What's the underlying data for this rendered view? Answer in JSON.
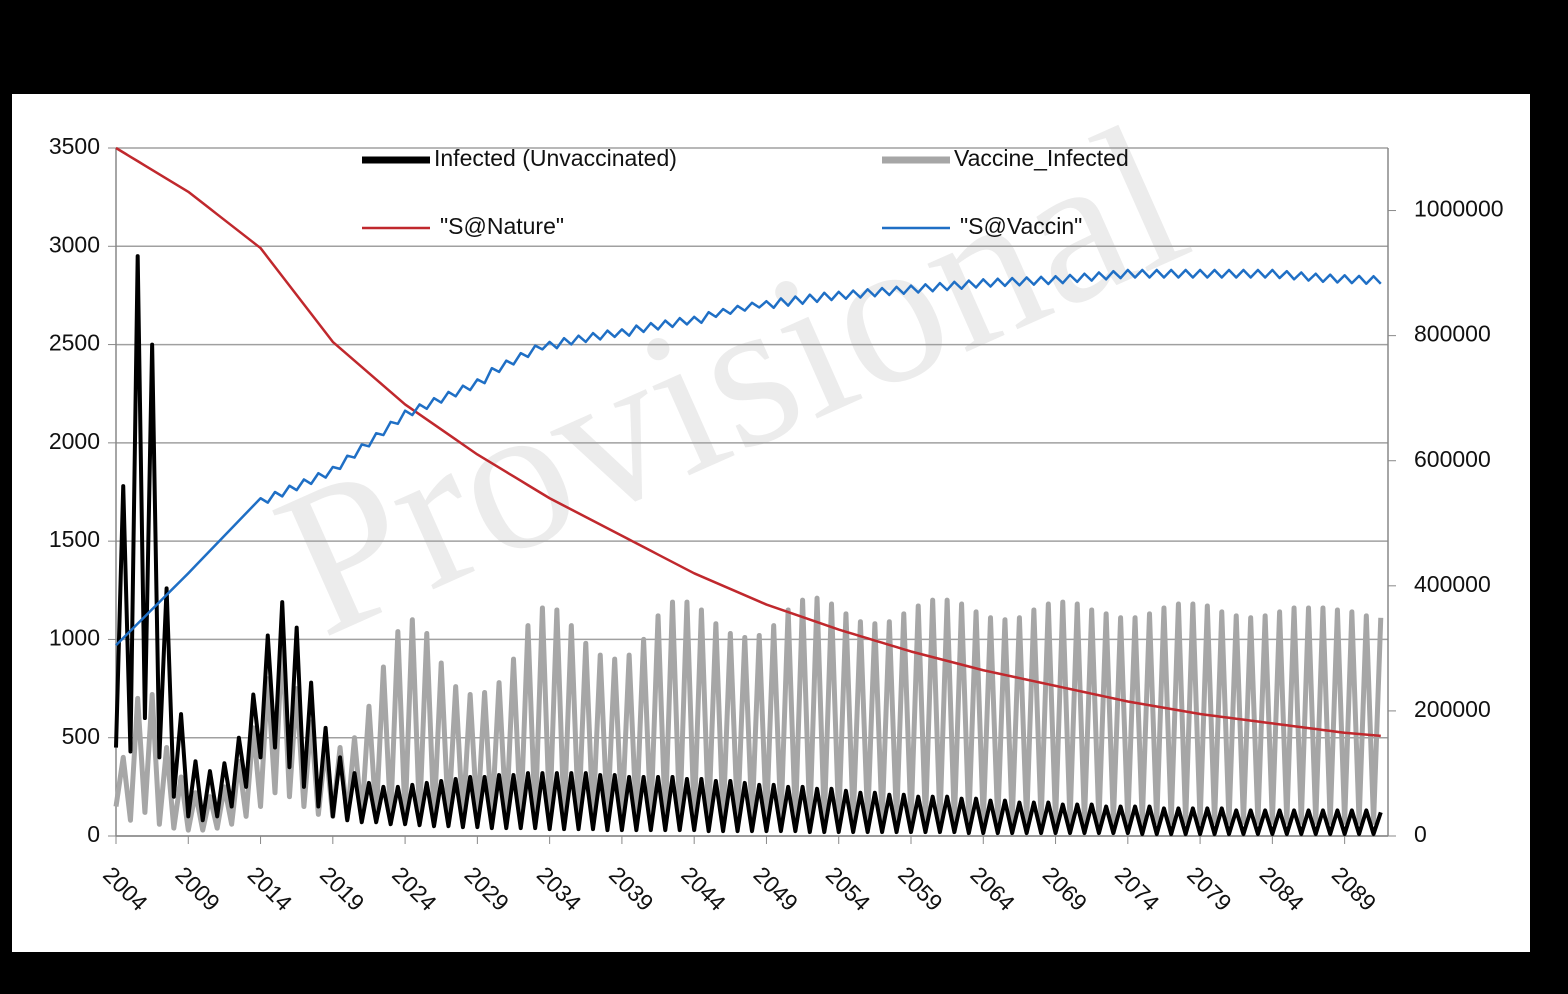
{
  "chart_data": {
    "type": "line",
    "watermark": "Provisional",
    "x": [
      2004,
      2004.5,
      2005,
      2005.5,
      2006,
      2006.5,
      2007,
      2007.5,
      2008,
      2008.5,
      2009,
      2009.5,
      2010,
      2010.5,
      2011,
      2011.5,
      2012,
      2012.5,
      2013,
      2013.5,
      2014,
      2014.5,
      2015,
      2015.5,
      2016,
      2016.5,
      2017,
      2017.5,
      2018,
      2018.5,
      2019,
      2019.5,
      2020,
      2020.5,
      2021,
      2021.5,
      2022,
      2022.5,
      2023,
      2023.5,
      2024,
      2024.5,
      2025,
      2025.5,
      2026,
      2026.5,
      2027,
      2027.5,
      2028,
      2028.5,
      2029,
      2029.5,
      2030,
      2030.5,
      2031,
      2031.5,
      2032,
      2032.5,
      2033,
      2033.5,
      2034,
      2034.5,
      2035,
      2035.5,
      2036,
      2036.5,
      2037,
      2037.5,
      2038,
      2038.5,
      2039,
      2039.5,
      2040,
      2040.5,
      2041,
      2041.5,
      2042,
      2042.5,
      2043,
      2043.5,
      2044,
      2044.5,
      2045,
      2045.5,
      2046,
      2046.5,
      2047,
      2047.5,
      2048,
      2048.5,
      2049,
      2049.5,
      2050,
      2050.5,
      2051,
      2051.5,
      2052,
      2052.5,
      2053,
      2053.5,
      2054,
      2054.5,
      2055,
      2055.5,
      2056,
      2056.5,
      2057,
      2057.5,
      2058,
      2058.5,
      2059,
      2059.5,
      2060,
      2060.5,
      2061,
      2061.5,
      2062,
      2062.5,
      2063,
      2063.5,
      2064,
      2064.5,
      2065,
      2065.5,
      2066,
      2066.5,
      2067,
      2067.5,
      2068,
      2068.5,
      2069,
      2069.5,
      2070,
      2070.5,
      2071,
      2071.5,
      2072,
      2072.5,
      2073,
      2073.5,
      2074,
      2074.5,
      2075,
      2075.5,
      2076,
      2076.5,
      2077,
      2077.5,
      2078,
      2078.5,
      2079,
      2079.5,
      2080,
      2080.5,
      2081,
      2081.5,
      2082,
      2082.5,
      2083,
      2083.5,
      2084,
      2084.5,
      2085,
      2085.5,
      2086,
      2086.5,
      2087,
      2087.5,
      2088,
      2088.5,
      2089,
      2089.5,
      2090,
      2090.5,
      2091,
      2091.5
    ],
    "series": [
      {
        "name": "Infected (Unvaccinated)",
        "color": "#000000",
        "axis": "y",
        "values": [
          450,
          1780,
          430,
          2950,
          600,
          2500,
          400,
          1260,
          200,
          620,
          100,
          380,
          80,
          330,
          100,
          370,
          150,
          500,
          250,
          720,
          400,
          1020,
          450,
          1190,
          350,
          1060,
          250,
          780,
          150,
          550,
          100,
          400,
          80,
          320,
          70,
          270,
          70,
          250,
          60,
          250,
          60,
          260,
          55,
          270,
          50,
          280,
          50,
          290,
          45,
          300,
          45,
          300,
          40,
          310,
          40,
          310,
          40,
          320,
          40,
          320,
          35,
          320,
          35,
          320,
          35,
          320,
          35,
          310,
          30,
          310,
          30,
          300,
          30,
          300,
          30,
          300,
          30,
          300,
          30,
          290,
          30,
          290,
          25,
          280,
          25,
          280,
          25,
          270,
          25,
          260,
          25,
          260,
          25,
          250,
          25,
          250,
          20,
          240,
          20,
          240,
          20,
          230,
          20,
          220,
          20,
          220,
          20,
          210,
          20,
          210,
          20,
          200,
          20,
          200,
          20,
          200,
          20,
          190,
          15,
          190,
          15,
          180,
          15,
          180,
          15,
          170,
          15,
          170,
          15,
          170,
          15,
          160,
          15,
          160,
          15,
          160,
          15,
          150,
          15,
          150,
          15,
          150,
          10,
          150,
          10,
          140,
          10,
          140,
          10,
          140,
          10,
          140,
          10,
          140,
          10,
          130,
          10,
          130,
          10,
          130,
          10,
          130,
          10,
          130,
          10,
          130,
          10,
          130,
          10,
          130,
          10,
          130,
          10,
          130,
          10,
          120
        ]
      },
      {
        "name": "Vaccine_Infected",
        "color": "#a6a6a6",
        "axis": "y",
        "values": [
          150,
          400,
          80,
          700,
          120,
          720,
          60,
          450,
          40,
          300,
          30,
          220,
          30,
          200,
          40,
          250,
          60,
          380,
          100,
          550,
          150,
          800,
          220,
          1000,
          200,
          750,
          150,
          580,
          110,
          460,
          100,
          450,
          90,
          500,
          90,
          660,
          90,
          860,
          90,
          1040,
          90,
          1100,
          90,
          1030,
          85,
          880,
          80,
          760,
          80,
          720,
          80,
          730,
          80,
          780,
          80,
          900,
          80,
          1070,
          80,
          1160,
          80,
          1150,
          80,
          1070,
          80,
          980,
          80,
          920,
          80,
          900,
          80,
          920,
          80,
          1000,
          80,
          1120,
          80,
          1190,
          80,
          1190,
          80,
          1150,
          80,
          1080,
          75,
          1030,
          75,
          1010,
          75,
          1020,
          75,
          1070,
          75,
          1150,
          75,
          1200,
          75,
          1210,
          75,
          1180,
          75,
          1130,
          75,
          1090,
          75,
          1080,
          75,
          1090,
          70,
          1130,
          70,
          1170,
          70,
          1200,
          70,
          1200,
          70,
          1180,
          70,
          1140,
          70,
          1110,
          70,
          1100,
          70,
          1110,
          70,
          1150,
          70,
          1180,
          70,
          1190,
          70,
          1180,
          70,
          1150,
          70,
          1130,
          70,
          1110,
          70,
          1110,
          70,
          1130,
          70,
          1160,
          70,
          1180,
          70,
          1180,
          70,
          1170,
          70,
          1140,
          70,
          1120,
          70,
          1110,
          70,
          1120,
          70,
          1140,
          70,
          1160,
          70,
          1160,
          70,
          1160,
          70,
          1150,
          70,
          1140,
          70,
          1120,
          70,
          1110
        ]
      },
      {
        "name": "\"S@Nature\"",
        "color": "#c0282d",
        "axis": "y2",
        "values": [
          1100000,
          1093000,
          1086000,
          1079000,
          1072000,
          1065000,
          1058000,
          1051000,
          1044000,
          1037000,
          1030000,
          1021000,
          1012000,
          1003000,
          994000,
          985000,
          976000,
          967000,
          958000,
          949000,
          940000,
          925000,
          910000,
          895000,
          880000,
          865000,
          850000,
          835000,
          820000,
          805000,
          790000,
          780000,
          770000,
          760000,
          750000,
          740000,
          730000,
          720000,
          710000,
          700000,
          690000,
          682000,
          674000,
          666000,
          658000,
          650000,
          642000,
          634000,
          626000,
          618000,
          610000,
          603000,
          596000,
          589000,
          582000,
          575000,
          568000,
          561000,
          554000,
          547000,
          540000,
          534000,
          528000,
          522000,
          516000,
          510000,
          504000,
          498000,
          492000,
          486000,
          480000,
          474000,
          468000,
          462000,
          456000,
          450000,
          444000,
          438000,
          432000,
          426000,
          420000,
          415000,
          410000,
          405000,
          400000,
          395000,
          390000,
          385000,
          380000,
          375000,
          370000,
          366000,
          362000,
          358000,
          354000,
          350000,
          346000,
          342000,
          338000,
          334000,
          330000,
          326500,
          323000,
          319500,
          316000,
          312500,
          309000,
          305500,
          302000,
          298500,
          295000,
          292000,
          289000,
          286000,
          283000,
          280000,
          277000,
          274000,
          271000,
          268000,
          265000,
          262500,
          260000,
          257500,
          255000,
          252500,
          250000,
          247500,
          245000,
          242500,
          240000,
          237500,
          235000,
          232500,
          230000,
          227500,
          225000,
          222500,
          220000,
          217500,
          215000,
          213000,
          211000,
          209000,
          207000,
          205000,
          203000,
          201000,
          199000,
          197000,
          195000,
          193500,
          192000,
          190500,
          189000,
          187500,
          186000,
          184500,
          183000,
          181500,
          180000,
          178500,
          177000,
          175500,
          174000,
          172500,
          171000,
          169500,
          168000,
          166500,
          165000,
          164000,
          163000,
          162000,
          161000,
          160000
        ]
      },
      {
        "name": "\"S@Vaccin\"",
        "color": "#1f6fc5",
        "axis": "y2",
        "values": [
          305000,
          316500,
          328000,
          339500,
          351000,
          362500,
          374000,
          385500,
          397000,
          408500,
          420000,
          432000,
          444000,
          456000,
          468000,
          480000,
          492000,
          504000,
          516000,
          528000,
          540000,
          533000,
          550000,
          543000,
          560000,
          553000,
          570000,
          563000,
          580000,
          573000,
          590000,
          587000,
          608000,
          605000,
          626000,
          623000,
          644000,
          641000,
          662000,
          659000,
          680000,
          673000,
          690000,
          683000,
          700000,
          693000,
          710000,
          703000,
          720000,
          713000,
          730000,
          724000,
          748000,
          742000,
          760000,
          754000,
          772000,
          766000,
          784000,
          778000,
          790000,
          780000,
          796000,
          786000,
          800000,
          790000,
          804000,
          794000,
          808000,
          798000,
          810000,
          800000,
          816000,
          806000,
          820000,
          810000,
          824000,
          814000,
          828000,
          818000,
          830000,
          820500,
          837500,
          830000,
          842500,
          835000,
          847500,
          840000,
          852500,
          845000,
          855000,
          844500,
          859500,
          848000,
          862500,
          851000,
          865500,
          854000,
          868500,
          857000,
          870000,
          859000,
          872000,
          861000,
          874000,
          863000,
          876000,
          865000,
          878000,
          867000,
          880000,
          869000,
          882000,
          871000,
          884000,
          873000,
          886000,
          875000,
          888000,
          877000,
          890000,
          878500,
          891000,
          879500,
          892000,
          880500,
          893000,
          881500,
          894000,
          882500,
          895000,
          884000,
          897000,
          886000,
          899000,
          888000,
          901000,
          890000,
          903000,
          892000,
          905000,
          893000,
          905000,
          893000,
          905000,
          893000,
          905000,
          893000,
          905000,
          893000,
          905000,
          893000,
          905000,
          893000,
          905000,
          893000,
          905000,
          893000,
          905000,
          893000,
          905000,
          892000,
          903000,
          890000,
          901000,
          888000,
          899000,
          886000,
          897500,
          885000,
          896500,
          884000,
          895500,
          883000,
          895000,
          883000
        ]
      }
    ],
    "xlim": [
      2004,
      2092
    ],
    "xticks": [
      2004,
      2009,
      2014,
      2019,
      2024,
      2029,
      2034,
      2039,
      2044,
      2049,
      2054,
      2059,
      2064,
      2069,
      2074,
      2079,
      2084,
      2089
    ],
    "ylim": [
      0,
      3500
    ],
    "yticks": [
      0,
      500,
      1000,
      1500,
      2000,
      2500,
      3000,
      3500
    ],
    "y2lim": [
      0,
      1100000
    ],
    "y2ticks": [
      0,
      200000,
      400000,
      600000,
      800000,
      1000000
    ],
    "grid": true,
    "legend": "top"
  }
}
